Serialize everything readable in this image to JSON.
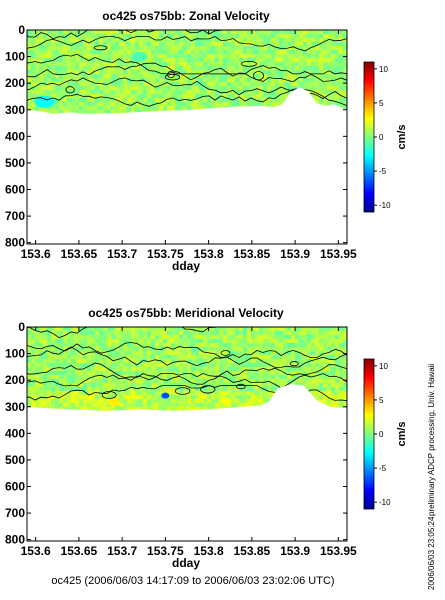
{
  "chart_data": [
    {
      "type": "heatmap",
      "title": "oc425 os75bb: Zonal Velocity",
      "xlabel": "dday",
      "ylabel": "",
      "xlim": [
        153.59,
        153.96
      ],
      "ylim": [
        805,
        0
      ],
      "xticks": [
        "153.6",
        "153.65",
        "153.7",
        "153.75",
        "153.8",
        "153.85",
        "153.9",
        "153.95"
      ],
      "yticks": [
        "0",
        "100",
        "200",
        "300",
        "400",
        "500",
        "600",
        "700",
        "800"
      ],
      "colorbar": {
        "label": "cm/s",
        "range": [
          -11,
          11
        ],
        "ticks": [
          "10",
          "5",
          "0",
          "-5",
          "-10"
        ]
      },
      "data_bottom_depth": [
        [
          153.59,
          300
        ],
        [
          153.605,
          305
        ],
        [
          153.62,
          315
        ],
        [
          153.64,
          310
        ],
        [
          153.66,
          315
        ],
        [
          153.7,
          312
        ],
        [
          153.74,
          305
        ],
        [
          153.78,
          300
        ],
        [
          153.82,
          290
        ],
        [
          153.86,
          285
        ],
        [
          153.875,
          290
        ],
        [
          153.885,
          280
        ],
        [
          153.895,
          235
        ],
        [
          153.905,
          215
        ],
        [
          153.915,
          230
        ],
        [
          153.925,
          275
        ],
        [
          153.935,
          285
        ],
        [
          153.945,
          280
        ],
        [
          153.96,
          300
        ]
      ],
      "field_note": "mostly 0 to +3 cm/s with scattered -2 patches; -4 cm/s blob near 153.61 at 270 m"
    },
    {
      "type": "heatmap",
      "title": "oc425 os75bb: Meridional Velocity",
      "xlabel": "dday",
      "ylabel": "",
      "xlim": [
        153.59,
        153.96
      ],
      "ylim": [
        805,
        0
      ],
      "xticks": [
        "153.6",
        "153.65",
        "153.7",
        "153.75",
        "153.8",
        "153.85",
        "153.9",
        "153.95"
      ],
      "yticks": [
        "0",
        "100",
        "200",
        "300",
        "400",
        "500",
        "600",
        "700",
        "800"
      ],
      "colorbar": {
        "label": "cm/s",
        "range": [
          -11,
          11
        ],
        "ticks": [
          "10",
          "5",
          "0",
          "-5",
          "-10"
        ]
      },
      "data_bottom_depth": [
        [
          153.59,
          300
        ],
        [
          153.61,
          305
        ],
        [
          153.64,
          310
        ],
        [
          153.68,
          315
        ],
        [
          153.72,
          310
        ],
        [
          153.76,
          315
        ],
        [
          153.8,
          310
        ],
        [
          153.84,
          300
        ],
        [
          153.86,
          295
        ],
        [
          153.87,
          280
        ],
        [
          153.88,
          230
        ],
        [
          153.895,
          215
        ],
        [
          153.91,
          220
        ],
        [
          153.925,
          275
        ],
        [
          153.94,
          300
        ],
        [
          153.96,
          305
        ]
      ],
      "field_note": "mostly 0 to +3 cm/s; +4 cm/s patches near 280 m; -5 cm/s spot near 153.75 at 260 m"
    }
  ],
  "footer": "oc425 (2006/06/03 14:17:09 to 2006/06/03 23:02:06 UTC)",
  "side_note": "preliminary ADCP processing,   Univ. Hawaii",
  "side_timestamp": "2006/06/03 23:05:24"
}
